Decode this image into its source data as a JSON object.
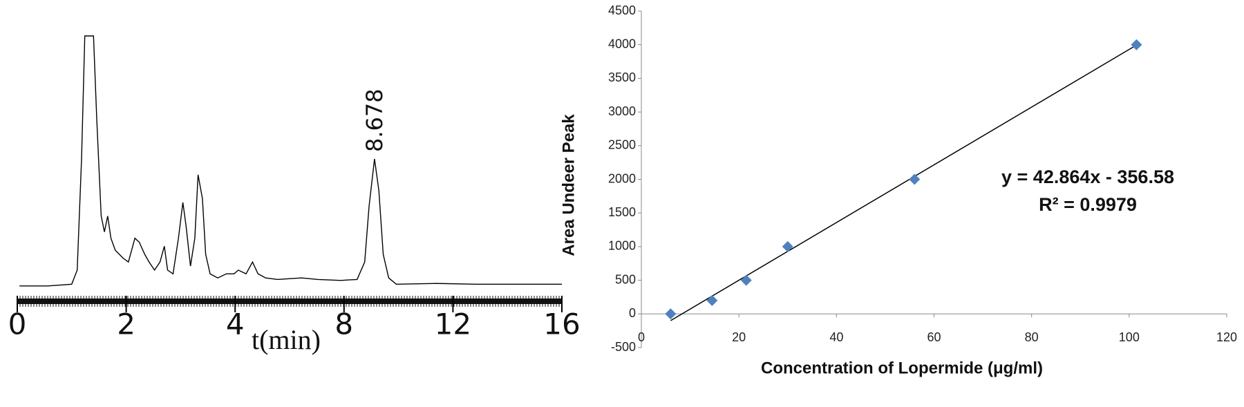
{
  "chart_data": [
    {
      "type": "line",
      "x_axis_title": "t(min)",
      "annotation": "8.678",
      "categories": [
        "0",
        "2",
        "4",
        "8",
        "12",
        "16"
      ],
      "xlim": [
        0,
        5
      ],
      "ylim": [
        0,
        100
      ],
      "series": [
        {
          "color": "#000000",
          "x": [
            0.02,
            0.28,
            0.5,
            0.55,
            0.59,
            0.62,
            0.7,
            0.73,
            0.77,
            0.8,
            0.83,
            0.86,
            0.9,
            0.97,
            1.02,
            1.08,
            1.12,
            1.17,
            1.21,
            1.26,
            1.31,
            1.35,
            1.38,
            1.43,
            1.48,
            1.52,
            1.55,
            1.59,
            1.63,
            1.66,
            1.7,
            1.73,
            1.77,
            1.84,
            1.92,
            1.99,
            2.03,
            2.1,
            2.16,
            2.21,
            2.28,
            2.39,
            2.61,
            2.76,
            2.97,
            3.12,
            3.19,
            3.23,
            3.28,
            3.32,
            3.36,
            3.41,
            3.48,
            3.85,
            4.21,
            5.0
          ],
          "values": [
            0.6,
            0.6,
            1.3,
            6.9,
            51.1,
            100,
            100,
            66.9,
            28.4,
            22.1,
            28.4,
            19.6,
            14.8,
            11.7,
            10.1,
            19.6,
            18.0,
            13.2,
            10.1,
            6.9,
            10.1,
            16.4,
            6.9,
            5.4,
            19.6,
            33.8,
            24.3,
            8.5,
            19.6,
            44.8,
            35.3,
            13.2,
            5.4,
            3.8,
            5.4,
            5.4,
            6.9,
            5.4,
            10.1,
            5.4,
            3.8,
            3.2,
            3.8,
            3.2,
            2.8,
            3.2,
            10.1,
            32.2,
            51.1,
            38.5,
            13.2,
            3.8,
            1.3,
            1.6,
            1.3,
            1.3
          ]
        }
      ]
    },
    {
      "type": "scatter",
      "x_axis_title": "Concentration of Lopermide (μg/ml)",
      "y_axis_title": "Area Undeer Peak",
      "color": "#4f81bd",
      "x": [
        6,
        14.5,
        21.5,
        30,
        56,
        101.5
      ],
      "values": [
        0,
        200,
        500,
        1000,
        2000,
        4000
      ],
      "xlim": [
        0,
        120
      ],
      "xticks": [
        0,
        20,
        40,
        60,
        80,
        100,
        120
      ],
      "ylim": [
        -500,
        4500
      ],
      "yticks": [
        -500,
        0,
        500,
        1000,
        1500,
        2000,
        2500,
        3000,
        3500,
        4000,
        4500
      ],
      "trendline": {
        "slope": 42.864,
        "intercept": -356.58,
        "equation": "y = 42.864x - 356.58",
        "r_squared_label": "R² = 0.9979"
      }
    }
  ]
}
